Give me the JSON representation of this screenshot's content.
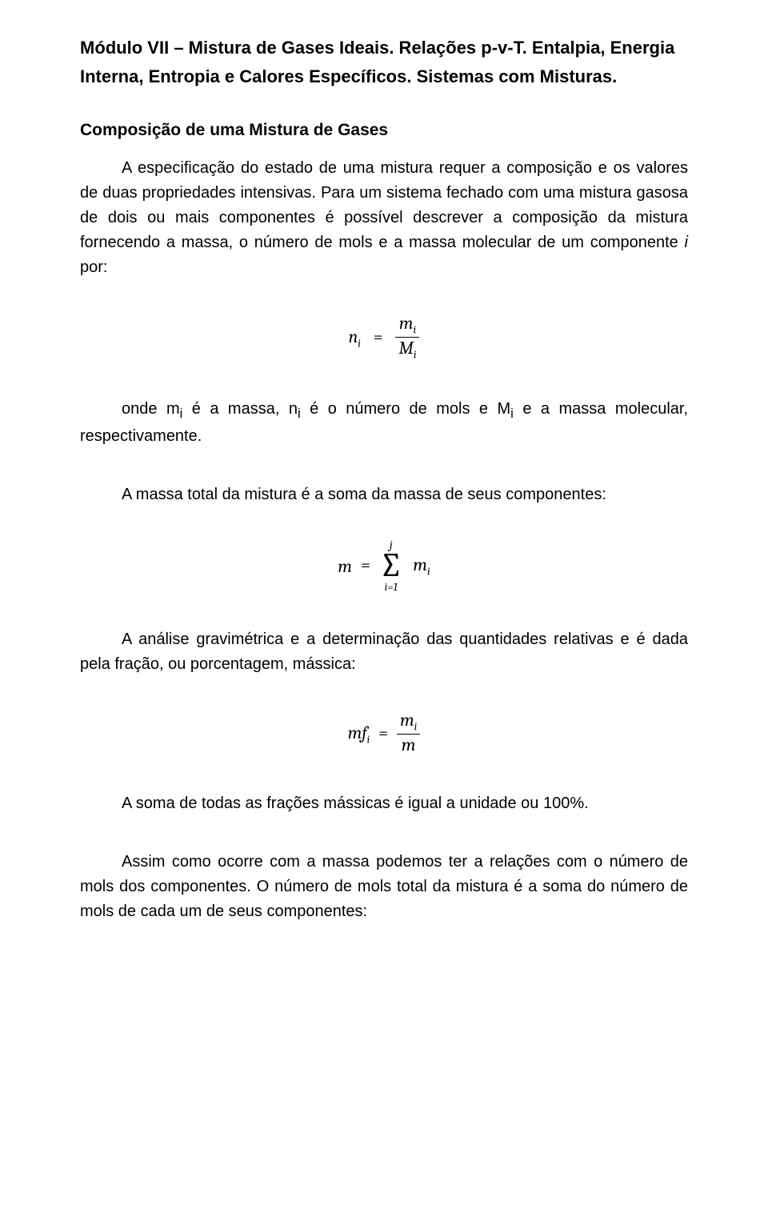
{
  "title": "Módulo VII – Mistura de Gases Ideais. Relações p-v-T. Entalpia, Energia Interna, Entropia e Calores Específicos. Sistemas com Misturas.",
  "section_heading": "Composição de uma Mistura de Gases",
  "p1_part1": "A especificação do estado de uma mistura requer a composição e os valores de duas propriedades intensivas. Para um sistema fechado com uma mistura gasosa de dois ou mais componentes é possível descrever a composição da mistura fornecendo a massa, o número de mols e a massa molecular de um componente ",
  "p1_italic": "i",
  "p1_part2": " por:",
  "eq1": {
    "lhs_base": "n",
    "lhs_sub": "i",
    "num_base": "m",
    "num_sub": "i",
    "den_base": "M",
    "den_sub": "i"
  },
  "p2_part1": "onde m",
  "p2_sub1": "i",
  "p2_part2": " é a massa, n",
  "p2_sub2": "i",
  "p2_part3": " é o número de mols e M",
  "p2_sub3": "i",
  "p2_part4": " e a massa molecular, respectivamente.",
  "p3": "A massa total da mistura é a soma da massa de seus componentes:",
  "eq2": {
    "lhs": "m",
    "sum_upper": "j",
    "sum_sigma": "∑",
    "sum_lower": "i=1",
    "term_base": "m",
    "term_sub": "i"
  },
  "p4": "A análise gravimétrica e a determinação das quantidades relativas e é dada pela fração, ou porcentagem, mássica:",
  "eq3": {
    "lhs_base": "mf",
    "lhs_sub": "i",
    "num_base": "m",
    "num_sub": "i",
    "den": "m"
  },
  "p5": "A soma de todas as frações mássicas é igual a unidade ou 100%.",
  "p6": "Assim como ocorre com a massa podemos ter a relações com o número de mols dos componentes. O número de mols total da mistura é a soma do número de mols de cada um de seus componentes:"
}
